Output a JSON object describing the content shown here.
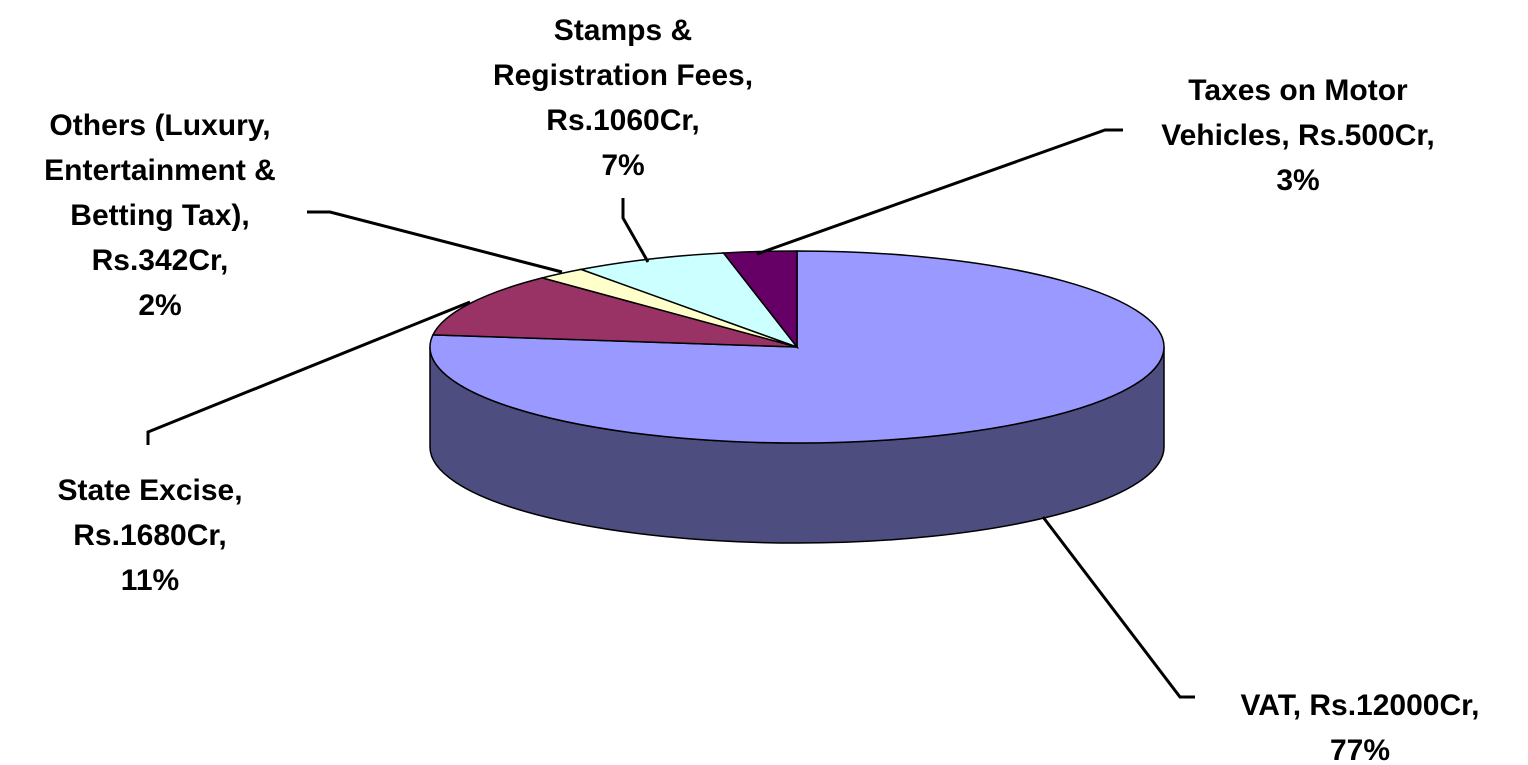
{
  "chart_data": {
    "type": "pie3d",
    "values": [
      12000,
      1680,
      342,
      1060,
      500
    ],
    "value_labels": [
      "VAT, Rs.12000Cr,\n77%",
      "State Excise,\nRs.1680Cr,\n11%",
      "Others (Luxury,\nEntertainment &\nBetting Tax),\nRs.342Cr,\n2%",
      "Stamps &\nRegistration Fees,\nRs.1060Cr,\n7%",
      "Taxes on Motor\nVehicles, Rs.500Cr,\n3%"
    ],
    "colors": [
      "#9999ff",
      "#993366",
      "#ffffcc",
      "#ccffff",
      "#660066"
    ],
    "side_colors": [
      "#4d4d80",
      "#4d1a33",
      "#808066",
      "#668080",
      "#330033"
    ]
  }
}
